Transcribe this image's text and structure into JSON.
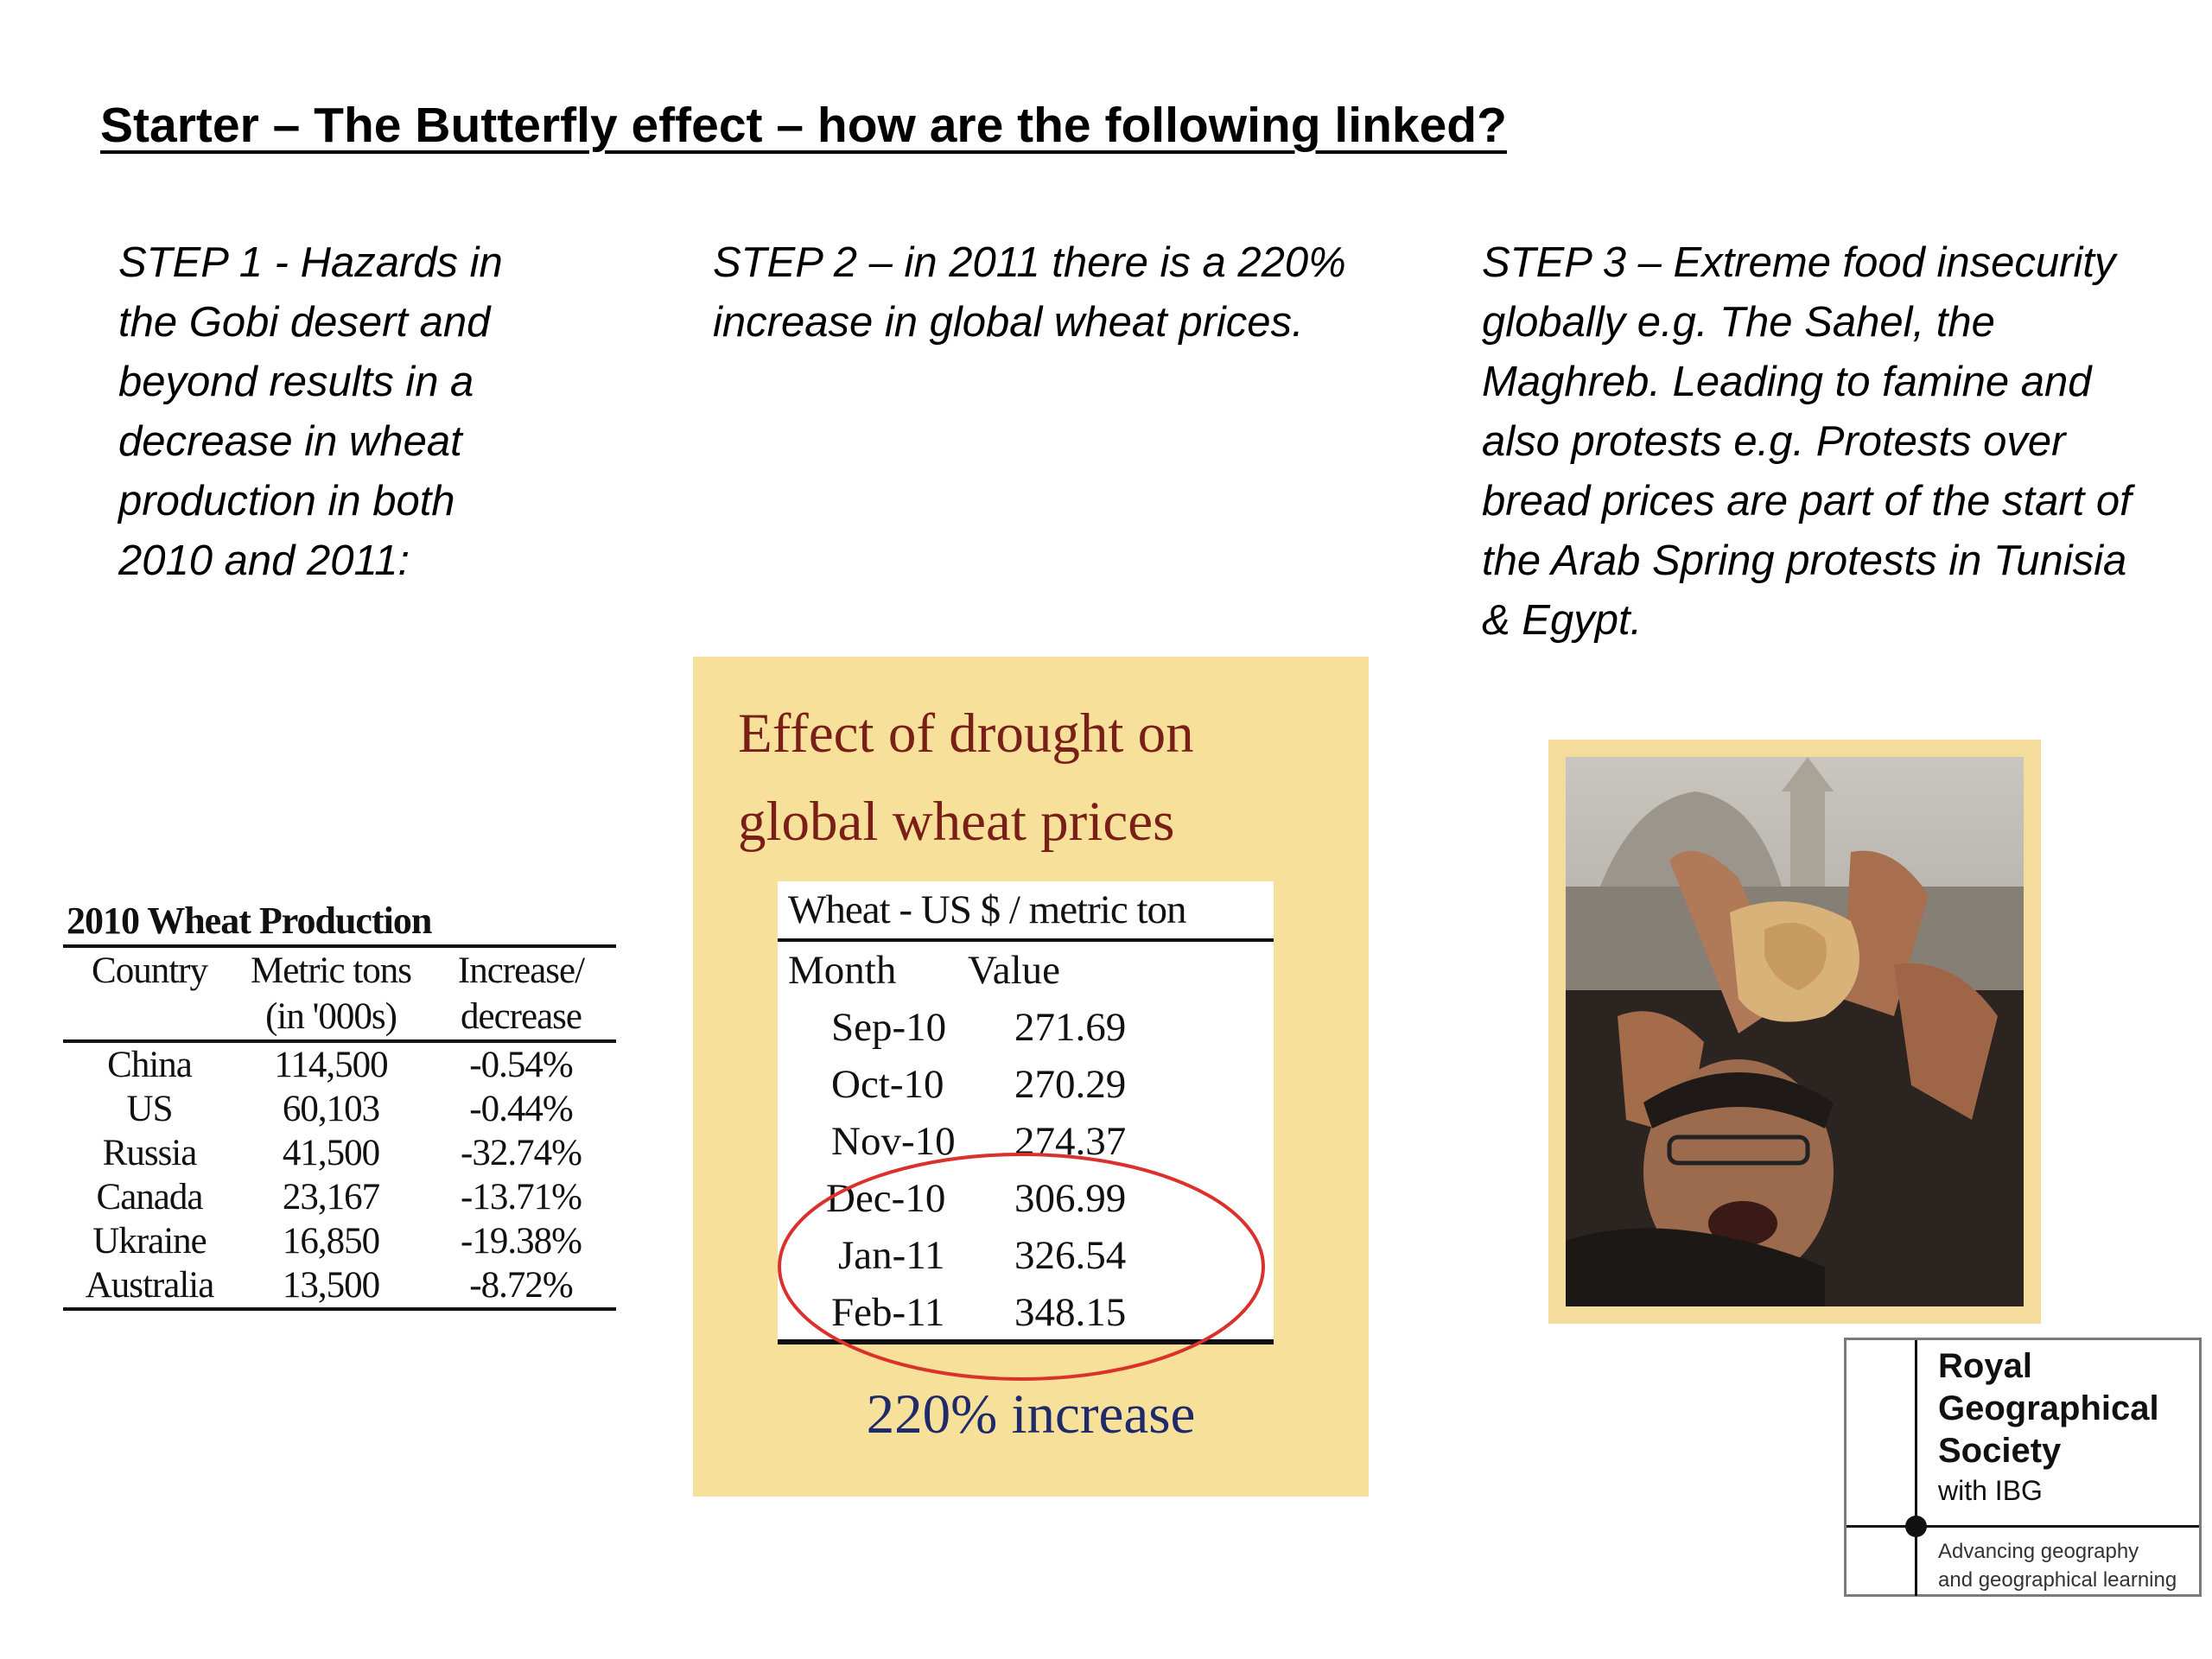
{
  "title": "Starter – The Butterfly effect – how are the following linked?",
  "steps": [
    {
      "text": "STEP 1 - Hazards in the Gobi desert and beyond results in a decrease in wheat production in both 2010 and 2011:"
    },
    {
      "text": "STEP 2 – in 2011 there is a 220% increase in global wheat prices."
    },
    {
      "text": "STEP 3 – Extreme food insecurity globally e.g. The Sahel, the Maghreb. Leading to famine and also protests e.g. Protests over bread prices are part of the start of the Arab Spring protests in Tunisia & Egypt."
    }
  ],
  "production_table": {
    "title": "2010 Wheat Production",
    "headers": [
      "Country",
      "Metric tons (in '000s)",
      "Increase/ decrease"
    ],
    "header_lines": [
      [
        "Country",
        ""
      ],
      [
        "Metric tons",
        "(in '000s)"
      ],
      [
        "Increase/",
        "decrease"
      ]
    ],
    "rows": [
      [
        "China",
        "114,500",
        "-0.54%"
      ],
      [
        "US",
        "60,103",
        "-0.44%"
      ],
      [
        "Russia",
        "41,500",
        "-32.74%"
      ],
      [
        "Canada",
        "23,167",
        "-13.71%"
      ],
      [
        "Ukraine",
        "16,850",
        "-19.38%"
      ],
      [
        "Australia",
        "13,500",
        "-8.72%"
      ]
    ]
  },
  "drought_panel": {
    "title_line1": "Effect of drought on",
    "title_line2": "global wheat prices",
    "table_title": "Wheat - US $ / metric ton",
    "col_month": "Month",
    "col_value": "Value",
    "rows": [
      [
        "Sep-10",
        "271.69"
      ],
      [
        "Oct-10",
        "270.29"
      ],
      [
        "Nov-10",
        "274.37"
      ],
      [
        "Dec-10",
        "306.99"
      ],
      [
        "Jan-11",
        "326.54"
      ],
      [
        "Feb-11",
        "348.15"
      ]
    ],
    "increase_label": "220% increase",
    "circle_color": "#d9312b"
  },
  "photo": {
    "subject": "protester holding bread"
  },
  "logo": {
    "line1": "Royal",
    "line2": "Geographical",
    "line3": "Society",
    "with": "with IBG",
    "tag1": "Advancing geography",
    "tag2": "and geographical learning"
  }
}
